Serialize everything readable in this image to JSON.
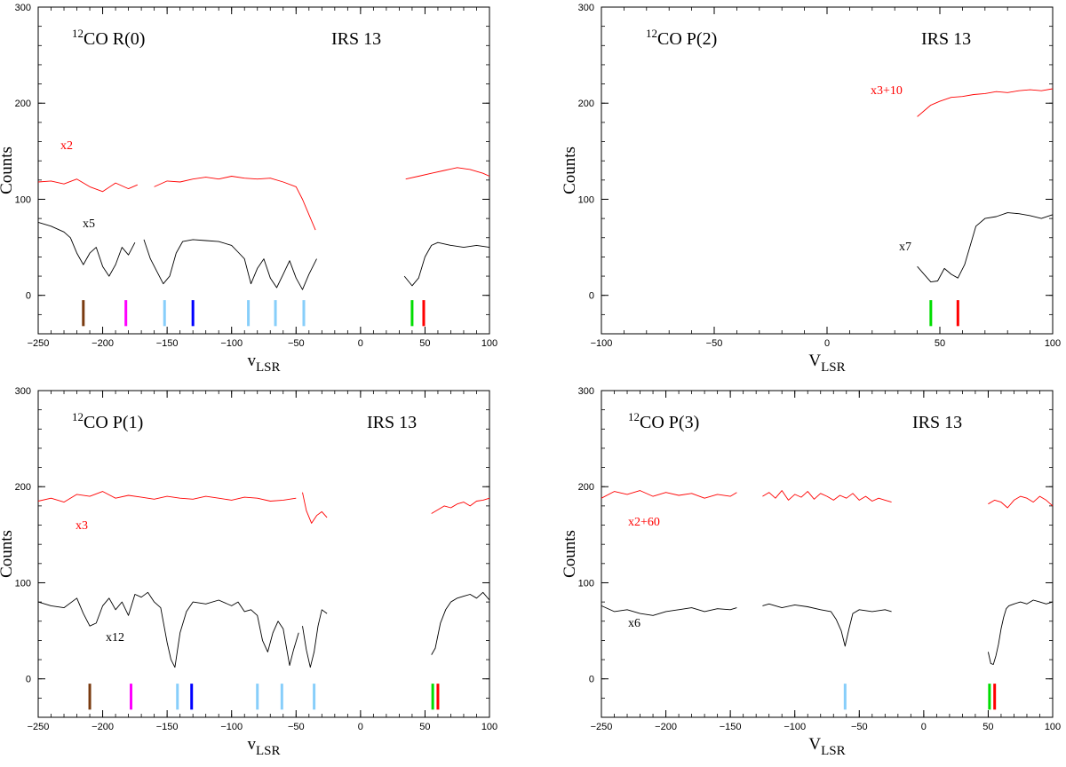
{
  "chart_data": [
    {
      "type": "line",
      "panel": "top-left",
      "title_prefix": "12",
      "title": "CO R(0)",
      "source": "IRS 13",
      "xlabel": "v",
      "xlabel_sub": "LSR",
      "ylabel": "Counts",
      "xlim": [
        -250,
        100
      ],
      "ylim": [
        -40,
        300
      ],
      "xticks": [
        -250,
        -200,
        -150,
        -100,
        -50,
        0,
        50,
        100
      ],
      "yticks": [
        0,
        100,
        200,
        300
      ],
      "series": [
        {
          "name": "x2",
          "label": "x2",
          "color": "#ff0000",
          "segments": [
            {
              "x": [
                -250,
                -240,
                -230,
                -220,
                -210,
                -200,
                -190,
                -180,
                -173
              ],
              "y": [
                118,
                119,
                116,
                121,
                113,
                108,
                117,
                111,
                115
              ]
            },
            {
              "x": [
                -160,
                -150,
                -140,
                -130,
                -120,
                -110,
                -100,
                -90,
                -80,
                -70,
                -60,
                -50,
                -45,
                -40,
                -35
              ],
              "y": [
                113,
                119,
                118,
                121,
                123,
                121,
                124,
                122,
                121,
                122,
                118,
                113,
                100,
                84,
                68
              ]
            },
            {
              "x": [
                35,
                45,
                55,
                65,
                75,
                85,
                95,
                100
              ],
              "y": [
                121,
                124,
                127,
                130,
                133,
                131,
                127,
                124
              ]
            }
          ]
        },
        {
          "name": "x5",
          "label": "x5",
          "color": "#000000",
          "segments": [
            {
              "x": [
                -250,
                -240,
                -230,
                -225,
                -220,
                -215,
                -210,
                -205,
                -200,
                -195,
                -190,
                -185,
                -180,
                -175
              ],
              "y": [
                76,
                72,
                66,
                60,
                44,
                32,
                44,
                50,
                30,
                20,
                32,
                50,
                42,
                55
              ]
            },
            {
              "x": [
                -168,
                -163,
                -158,
                -153,
                -148,
                -143,
                -138,
                -130,
                -120,
                -110,
                -100,
                -95,
                -90,
                -85,
                -80,
                -75,
                -70,
                -65,
                -60,
                -55,
                -50,
                -45,
                -40,
                -34
              ],
              "y": [
                58,
                38,
                25,
                12,
                20,
                44,
                56,
                58,
                57,
                56,
                52,
                45,
                38,
                12,
                28,
                38,
                18,
                8,
                22,
                36,
                18,
                6,
                22,
                38
              ]
            },
            {
              "x": [
                34,
                40,
                45,
                50,
                55,
                60,
                70,
                80,
                90,
                100
              ],
              "y": [
                20,
                10,
                18,
                40,
                52,
                55,
                52,
                50,
                52,
                50
              ]
            }
          ]
        }
      ],
      "markers": [
        {
          "v": -215,
          "color": "#7a3b10"
        },
        {
          "v": -182,
          "color": "#ff00ff"
        },
        {
          "v": -152,
          "color": "#87cefa"
        },
        {
          "v": -130,
          "color": "#0000ff"
        },
        {
          "v": -87,
          "color": "#87cefa"
        },
        {
          "v": -66,
          "color": "#87cefa"
        },
        {
          "v": -44,
          "color": "#87cefa"
        },
        {
          "v": 40,
          "color": "#00dd00"
        },
        {
          "v": 49,
          "color": "#ff0000"
        }
      ]
    },
    {
      "type": "line",
      "panel": "top-right",
      "title_prefix": "12",
      "title": "CO P(2)",
      "source": "IRS 13",
      "xlabel": "V",
      "xlabel_sub": "LSR",
      "ylabel": "Counts",
      "xlim": [
        -100,
        100
      ],
      "ylim": [
        -40,
        300
      ],
      "xticks": [
        -100,
        -50,
        0,
        50,
        100
      ],
      "yticks": [
        0,
        100,
        200,
        300
      ],
      "series": [
        {
          "name": "x3+10",
          "label": "x3+10",
          "color": "#ff0000",
          "segments": [
            {
              "x": [
                40,
                43,
                46,
                50,
                55,
                60,
                65,
                70,
                75,
                80,
                85,
                90,
                95,
                100
              ],
              "y": [
                186,
                192,
                198,
                202,
                206,
                207,
                209,
                210,
                212,
                211,
                213,
                214,
                213,
                215
              ]
            }
          ]
        },
        {
          "name": "x7",
          "label": "x7",
          "color": "#000000",
          "segments": [
            {
              "x": [
                40,
                43,
                46,
                49,
                52,
                55,
                58,
                61,
                63,
                66,
                70,
                75,
                80,
                85,
                90,
                95,
                100
              ],
              "y": [
                30,
                22,
                14,
                15,
                28,
                22,
                18,
                32,
                48,
                72,
                80,
                82,
                86,
                85,
                83,
                80,
                84
              ]
            }
          ]
        }
      ],
      "markers": [
        {
          "v": 46,
          "color": "#00dd00"
        },
        {
          "v": 58,
          "color": "#ff0000"
        }
      ]
    },
    {
      "type": "line",
      "panel": "bottom-left",
      "title_prefix": "12",
      "title": "CO P(1)",
      "source": "IRS 13",
      "xlabel": "v",
      "xlabel_sub": "LSR",
      "ylabel": "Counts",
      "xlim": [
        -250,
        100
      ],
      "ylim": [
        -40,
        300
      ],
      "xticks": [
        -250,
        -200,
        -150,
        -100,
        -50,
        0,
        50,
        100
      ],
      "yticks": [
        0,
        100,
        200,
        300
      ],
      "series": [
        {
          "name": "x3",
          "label": "x3",
          "color": "#ff0000",
          "segments": [
            {
              "x": [
                -250,
                -240,
                -230,
                -220,
                -210,
                -200,
                -190,
                -180,
                -170,
                -160,
                -150,
                -140,
                -130,
                -120,
                -110,
                -100,
                -90,
                -80,
                -70,
                -60,
                -50
              ],
              "y": [
                185,
                188,
                184,
                192,
                190,
                195,
                188,
                191,
                189,
                187,
                190,
                188,
                187,
                190,
                188,
                186,
                189,
                188,
                185,
                186,
                188
              ]
            },
            {
              "x": [
                -45,
                -42,
                -38,
                -34,
                -30,
                -26
              ],
              "y": [
                194,
                175,
                162,
                170,
                174,
                168
              ]
            },
            {
              "x": [
                55,
                60,
                65,
                70,
                75,
                80,
                85,
                90,
                95,
                100
              ],
              "y": [
                172,
                176,
                180,
                178,
                182,
                184,
                180,
                185,
                186,
                188
              ]
            }
          ]
        },
        {
          "name": "x12",
          "label": "x12",
          "color": "#000000",
          "segments": [
            {
              "x": [
                -250,
                -240,
                -230,
                -220,
                -215,
                -210,
                -205,
                -200,
                -195,
                -190,
                -185,
                -180,
                -175,
                -170,
                -165,
                -160,
                -155,
                -150,
                -147,
                -144,
                -140,
                -135,
                -130,
                -120,
                -110,
                -100,
                -95,
                -90,
                -85,
                -80,
                -76,
                -72,
                -68,
                -64,
                -60,
                -55,
                -52,
                -48
              ],
              "y": [
                80,
                76,
                74,
                84,
                68,
                55,
                58,
                76,
                84,
                72,
                80,
                66,
                88,
                85,
                90,
                80,
                74,
                38,
                20,
                12,
                48,
                70,
                80,
                78,
                82,
                76,
                80,
                70,
                72,
                66,
                40,
                28,
                48,
                60,
                52,
                14,
                30,
                48
              ]
            },
            {
              "x": [
                -45,
                -42,
                -39,
                -36,
                -33,
                -30,
                -26
              ],
              "y": [
                55,
                30,
                12,
                28,
                55,
                72,
                68
              ]
            },
            {
              "x": [
                55,
                58,
                62,
                66,
                70,
                75,
                80,
                85,
                90,
                95,
                100
              ],
              "y": [
                25,
                32,
                58,
                72,
                80,
                84,
                86,
                88,
                84,
                90,
                82
              ]
            }
          ]
        }
      ],
      "markers": [
        {
          "v": -210,
          "color": "#7a3b10"
        },
        {
          "v": -178,
          "color": "#ff00ff"
        },
        {
          "v": -142,
          "color": "#87cefa"
        },
        {
          "v": -131,
          "color": "#0000ff"
        },
        {
          "v": -80,
          "color": "#87cefa"
        },
        {
          "v": -61,
          "color": "#87cefa"
        },
        {
          "v": -36,
          "color": "#87cefa"
        },
        {
          "v": 56,
          "color": "#00dd00"
        },
        {
          "v": 60,
          "color": "#ff0000"
        }
      ]
    },
    {
      "type": "line",
      "panel": "bottom-right",
      "title_prefix": "12",
      "title": "CO P(3)",
      "source": "IRS 13",
      "xlabel": "V",
      "xlabel_sub": "LSR",
      "ylabel": "Counts",
      "xlim": [
        -250,
        100
      ],
      "ylim": [
        -40,
        300
      ],
      "xticks": [
        -250,
        -200,
        -150,
        -100,
        -50,
        0,
        50,
        100
      ],
      "yticks": [
        0,
        100,
        200,
        300
      ],
      "series": [
        {
          "name": "x2+60",
          "label": "x2+60",
          "color": "#ff0000",
          "segments": [
            {
              "x": [
                -250,
                -240,
                -230,
                -220,
                -210,
                -200,
                -190,
                -180,
                -170,
                -160,
                -150,
                -145
              ],
              "y": [
                188,
                195,
                192,
                196,
                190,
                194,
                191,
                193,
                188,
                192,
                190,
                194
              ]
            },
            {
              "x": [
                -125,
                -120,
                -115,
                -110,
                -105,
                -100,
                -95,
                -90,
                -85,
                -80,
                -75,
                -70,
                -65,
                -60,
                -55,
                -50,
                -45,
                -40,
                -35,
                -30,
                -25
              ],
              "y": [
                190,
                194,
                188,
                196,
                186,
                192,
                189,
                195,
                187,
                193,
                190,
                186,
                191,
                188,
                193,
                186,
                190,
                185,
                188,
                186,
                184
              ]
            },
            {
              "x": [
                50,
                55,
                60,
                65,
                70,
                75,
                80,
                85,
                90,
                95,
                100
              ],
              "y": [
                182,
                186,
                184,
                178,
                186,
                190,
                188,
                184,
                190,
                186,
                180
              ]
            }
          ]
        },
        {
          "name": "x6",
          "label": "x6",
          "color": "#000000",
          "segments": [
            {
              "x": [
                -250,
                -240,
                -230,
                -220,
                -210,
                -200,
                -190,
                -180,
                -170,
                -160,
                -150,
                -145
              ],
              "y": [
                76,
                70,
                72,
                68,
                66,
                70,
                72,
                74,
                70,
                73,
                72,
                74
              ]
            },
            {
              "x": [
                -125,
                -120,
                -110,
                -100,
                -90,
                -80,
                -72,
                -68,
                -64,
                -61,
                -58,
                -55,
                -50,
                -40,
                -30,
                -25
              ],
              "y": [
                76,
                78,
                74,
                77,
                75,
                72,
                70,
                62,
                50,
                34,
                52,
                68,
                72,
                70,
                72,
                70
              ]
            },
            {
              "x": [
                50,
                52,
                54,
                56,
                58,
                60,
                62,
                64,
                66,
                70,
                75,
                80,
                85,
                90,
                95,
                100
              ],
              "y": [
                28,
                16,
                15,
                24,
                36,
                52,
                64,
                73,
                76,
                78,
                80,
                78,
                82,
                80,
                78,
                80
              ]
            }
          ]
        }
      ],
      "markers": [
        {
          "v": -61,
          "color": "#87cefa"
        },
        {
          "v": 51,
          "color": "#00dd00"
        },
        {
          "v": 55,
          "color": "#ff0000"
        }
      ]
    }
  ]
}
